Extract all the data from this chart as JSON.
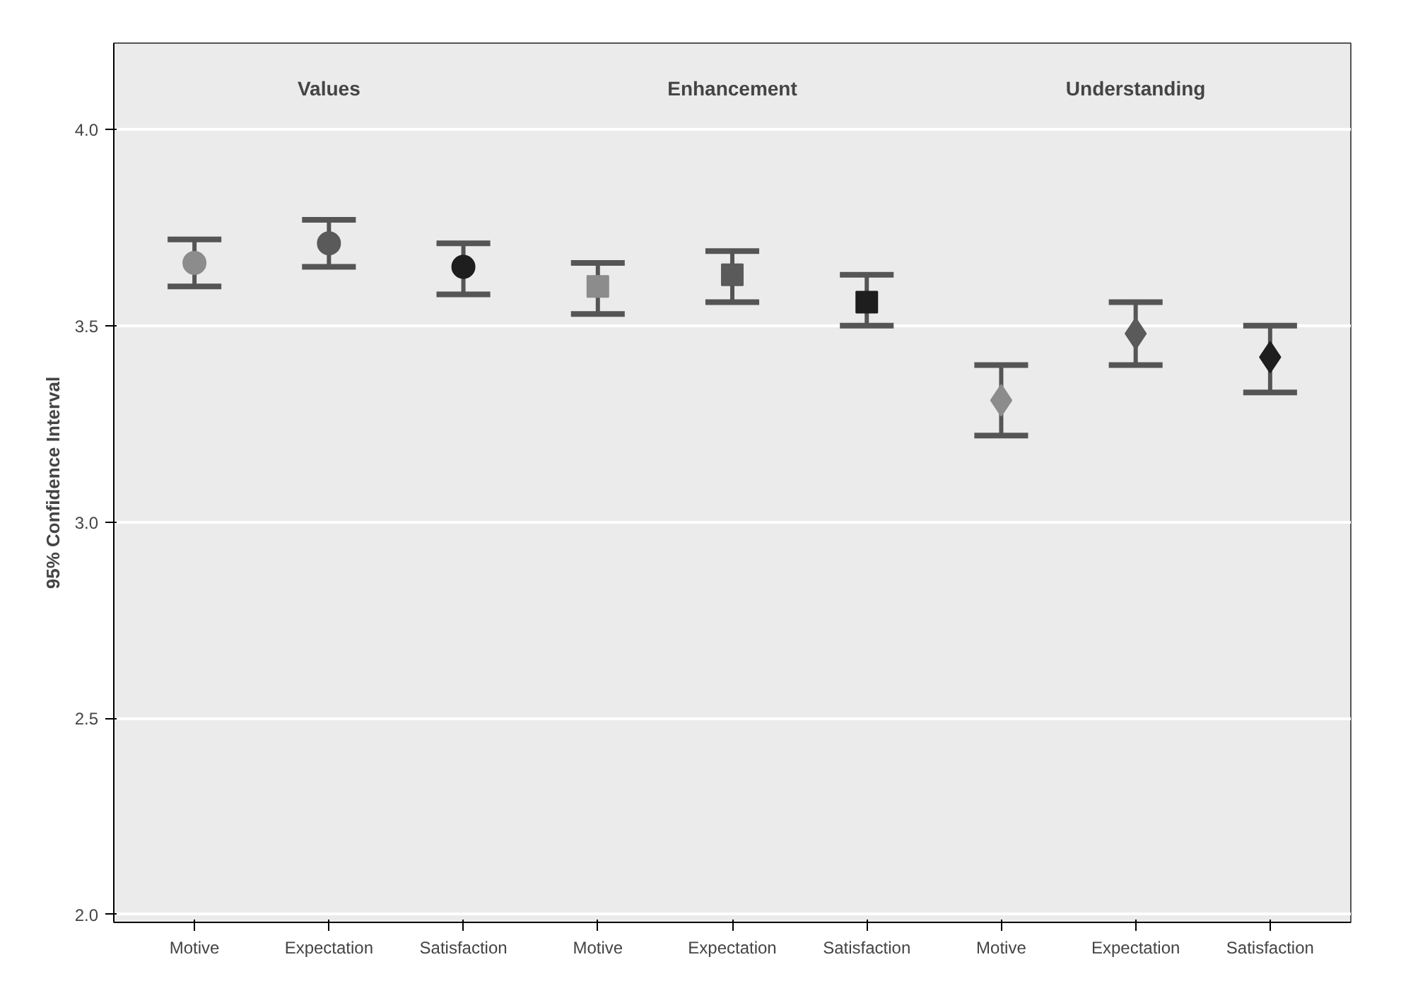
{
  "chart_data": {
    "type": "scatter",
    "ylabel": "95% Confidence Interval",
    "categories": [
      "Motive",
      "Expectation",
      "Satisfaction",
      "Motive",
      "Expectation",
      "Satisfaction",
      "Motive",
      "Expectation",
      "Satisfaction"
    ],
    "series": [
      {
        "marker": "circle",
        "values": [
          3.66,
          3.71,
          3.65,
          null,
          null,
          null,
          null,
          null,
          null
        ],
        "errors": [
          [
            3.6,
            3.72
          ],
          [
            3.65,
            3.77
          ],
          [
            3.58,
            3.71
          ],
          null,
          null,
          null,
          null,
          null,
          null
        ],
        "colors": [
          "#8c8c8c",
          "#5a5a5a",
          "#1e1e1e",
          null,
          null,
          null,
          null,
          null,
          null
        ]
      },
      {
        "marker": "square",
        "values": [
          null,
          null,
          null,
          3.6,
          3.63,
          3.56,
          null,
          null,
          null
        ],
        "errors": [
          null,
          null,
          null,
          [
            3.53,
            3.66
          ],
          [
            3.56,
            3.69
          ],
          [
            3.5,
            3.63
          ],
          null,
          null,
          null
        ],
        "colors": [
          null,
          null,
          null,
          "#8c8c8c",
          "#5a5a5a",
          "#1e1e1e",
          null,
          null,
          null
        ]
      },
      {
        "marker": "diamond",
        "values": [
          null,
          null,
          null,
          null,
          null,
          null,
          3.31,
          3.48,
          3.42
        ],
        "errors": [
          null,
          null,
          null,
          null,
          null,
          null,
          [
            3.22,
            3.4
          ],
          [
            3.4,
            3.56
          ],
          [
            3.33,
            3.5
          ]
        ],
        "colors": [
          null,
          null,
          null,
          null,
          null,
          null,
          "#8c8c8c",
          "#5a5a5a",
          "#1e1e1e"
        ]
      }
    ],
    "annotations": [
      "Values",
      "Enhancement",
      "Understanding"
    ],
    "ylim": [
      1.98,
      4.22
    ],
    "yticks": [
      {
        "value": 2.0,
        "label": "2.0"
      },
      {
        "value": 2.5,
        "label": "2.5"
      },
      {
        "value": 3.0,
        "label": "3.0"
      },
      {
        "value": 3.5,
        "label": "3.5"
      },
      {
        "value": 4.0,
        "label": "4.0"
      }
    ],
    "grid": "y"
  }
}
